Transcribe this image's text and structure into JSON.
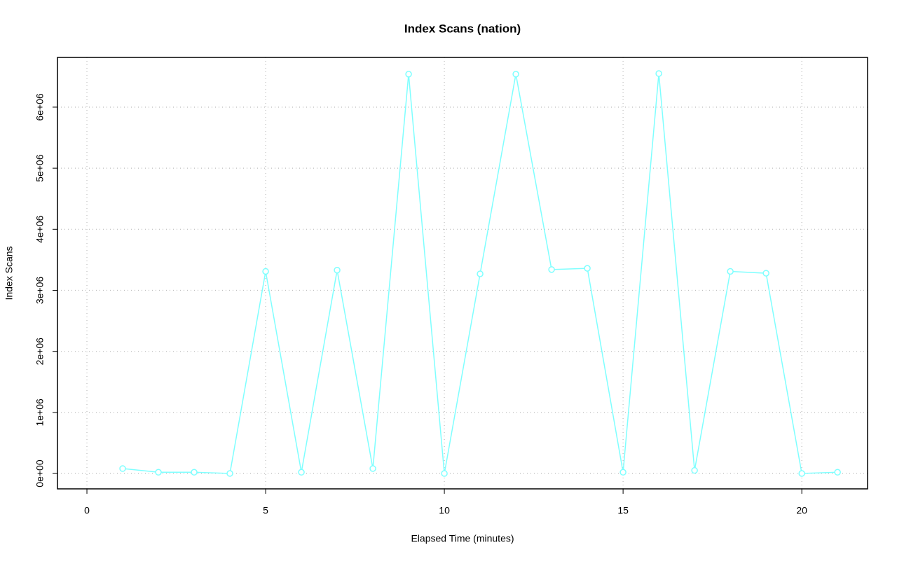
{
  "chart_data": {
    "type": "line",
    "title": "Index Scans (nation)",
    "x_label": "Elapsed Time (minutes)",
    "y_label": "Index Scans",
    "x": [
      1,
      2,
      3,
      4,
      5,
      6,
      7,
      8,
      9,
      10,
      11,
      12,
      13,
      14,
      15,
      16,
      17,
      18,
      19,
      20,
      21
    ],
    "values": [
      80000,
      20000,
      20000,
      0,
      3310000,
      20000,
      3330000,
      80000,
      6540000,
      0,
      3270000,
      6540000,
      3340000,
      3360000,
      20000,
      6550000,
      50000,
      3310000,
      3280000,
      0,
      20000
    ],
    "color": "#7fffff",
    "xlim": [
      -0.824,
      21.84
    ],
    "ylim": [
      -252000,
      6814000
    ],
    "xticks": [
      0,
      5,
      10,
      15,
      20
    ],
    "yticks": [
      {
        "value": 0,
        "label": "0e+00"
      },
      {
        "value": 1000000,
        "label": "1e+06"
      },
      {
        "value": 2000000,
        "label": "2e+06"
      },
      {
        "value": 3000000,
        "label": "3e+06"
      },
      {
        "value": 4000000,
        "label": "4e+06"
      },
      {
        "value": 5000000,
        "label": "5e+06"
      },
      {
        "value": 6000000,
        "label": "6e+06"
      }
    ],
    "grid": true
  }
}
